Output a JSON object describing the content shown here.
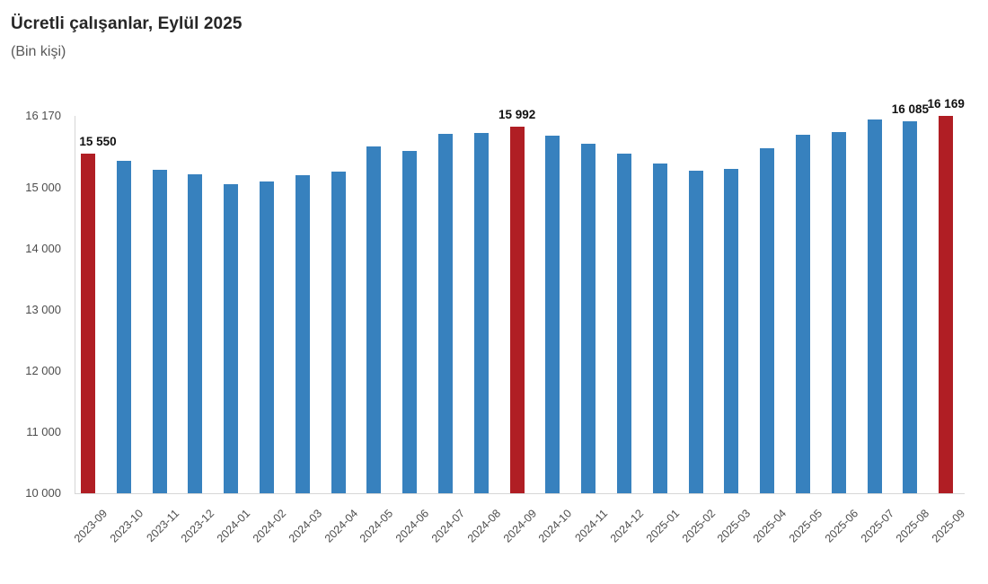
{
  "title": "Ücretli çalışanlar, Eylül 2025",
  "subtitle": "(Bin kişi)",
  "colors": {
    "bar_blue": "#3781be",
    "bar_red": "#b01e24",
    "axis_line": "#d6d6d6",
    "tick_text": "#4d4d4d",
    "data_label_text": "#111111"
  },
  "chart_data": {
    "type": "bar",
    "title": "Ücretli çalışanlar, Eylül 2025",
    "subtitle": "(Bin kişi)",
    "unit": "Bin kişi",
    "grid": false,
    "legend": false,
    "ylim": [
      10000,
      16170
    ],
    "yticks": [
      {
        "value": 16170,
        "label": "16 170"
      },
      {
        "value": 15000,
        "label": "15 000"
      },
      {
        "value": 14000,
        "label": "14 000"
      },
      {
        "value": 13000,
        "label": "13 000"
      },
      {
        "value": 12000,
        "label": "12 000"
      },
      {
        "value": 11000,
        "label": "11 000"
      },
      {
        "value": 10000,
        "label": "10 000"
      }
    ],
    "categories": [
      "2023-09",
      "2023-10",
      "2023-11",
      "2023-12",
      "2024-01",
      "2024-02",
      "2024-03",
      "2024-04",
      "2024-05",
      "2024-06",
      "2024-07",
      "2024-08",
      "2024-09",
      "2024-10",
      "2024-11",
      "2024-12",
      "2025-01",
      "2025-02",
      "2025-03",
      "2025-04",
      "2025-05",
      "2025-06",
      "2025-07",
      "2025-08",
      "2025-09"
    ],
    "values": [
      15550,
      15430,
      15290,
      15220,
      15050,
      15100,
      15200,
      15260,
      15670,
      15590,
      15880,
      15890,
      15992,
      15850,
      15720,
      15550,
      15390,
      15270,
      15300,
      15640,
      15860,
      15900,
      16110,
      16085,
      16169
    ],
    "highlighted_categories": [
      "2023-09",
      "2024-09",
      "2025-09"
    ],
    "data_labels": [
      {
        "category": "2023-09",
        "text": "15 550"
      },
      {
        "category": "2024-09",
        "text": "15 992"
      },
      {
        "category": "2025-08",
        "text": "16 085"
      },
      {
        "category": "2025-09",
        "text": "16 169"
      }
    ]
  }
}
